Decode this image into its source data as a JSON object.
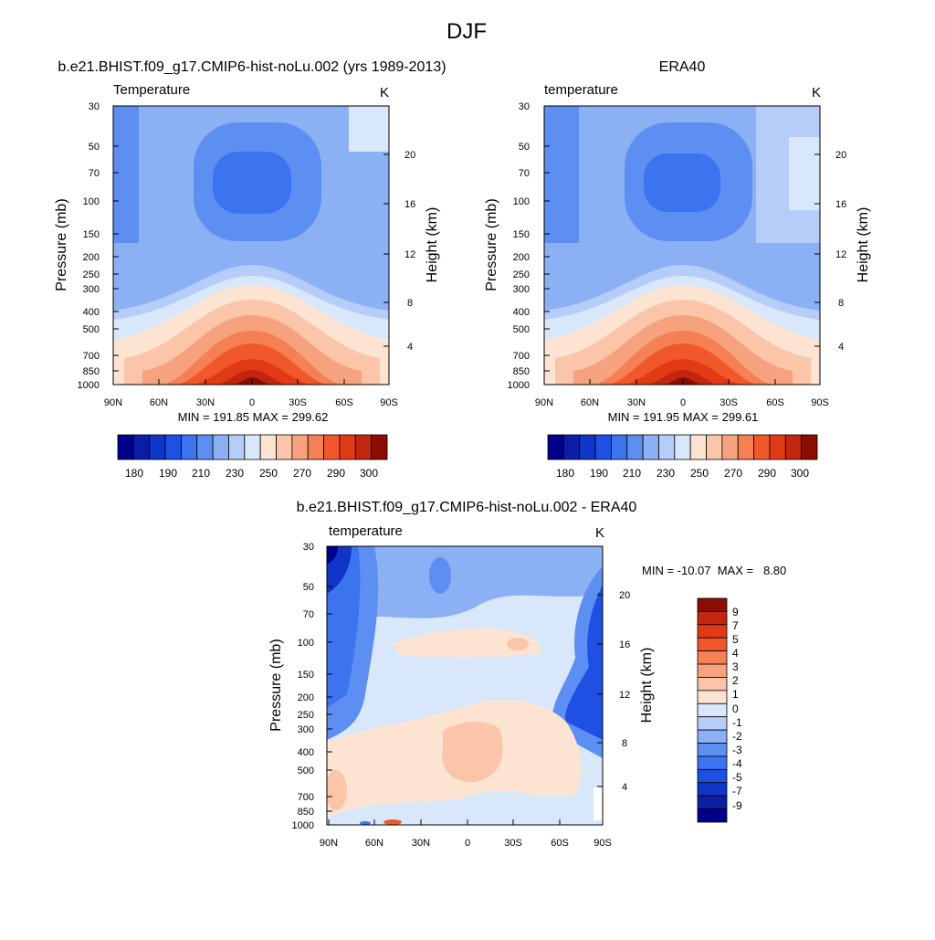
{
  "page": {
    "title": "DJF"
  },
  "colors": {
    "temp_levels": [
      "#00008a",
      "#0d1ea6",
      "#0f36c8",
      "#1f50e4",
      "#3c74f0",
      "#5d8ef2",
      "#8cb0f4",
      "#b5cdf8",
      "#d9e7fb",
      "#fde4d2",
      "#fbc5aa",
      "#f7a27e",
      "#f48054",
      "#f0582b",
      "#e33a16",
      "#c1260e",
      "#8b0d04"
    ],
    "diff_levels": [
      "#00008a",
      "#0d1ea6",
      "#0f36c8",
      "#1f50e4",
      "#3c74f0",
      "#5d8ef2",
      "#8cb0f4",
      "#b5cdf8",
      "#d9e7fb",
      "#fde4d2",
      "#fbc5aa",
      "#f7a27e",
      "#f48054",
      "#f0582b",
      "#e33a16",
      "#c1260e",
      "#8b0d04"
    ]
  },
  "chart_data": [
    {
      "type": "heatmap",
      "id": "model",
      "title": "b.e21.BHIST.f09_g17.CMIP6-hist-noLu.002 (yrs 1989-2013)",
      "subtitle_left": "Temperature",
      "subtitle_right": "K",
      "xlabel": "",
      "ylabel": "Pressure (mb)",
      "ylabel_right": "Height (km)",
      "x_ticks": [
        "90N",
        "60N",
        "30N",
        "0",
        "30S",
        "60S",
        "90S"
      ],
      "y_ticks": [
        "30",
        "50",
        "70",
        "100",
        "150",
        "200",
        "250",
        "300",
        "400",
        "500",
        "700",
        "850",
        "1000"
      ],
      "y_right_ticks": [
        "20",
        "16",
        "12",
        "8",
        "4"
      ],
      "stats": "MIN = 191.85  MAX = 299.62",
      "min": 191.85,
      "max": 299.62,
      "colorbar_ticks": [
        "180",
        "190",
        "210",
        "230",
        "250",
        "270",
        "290",
        "300"
      ]
    },
    {
      "type": "heatmap",
      "id": "era40",
      "title": "ERA40",
      "subtitle_left": "temperature",
      "subtitle_right": "K",
      "xlabel": "",
      "ylabel": "Pressure (mb)",
      "ylabel_right": "Height (km)",
      "x_ticks": [
        "90N",
        "60N",
        "30N",
        "0",
        "30S",
        "60S",
        "90S"
      ],
      "y_ticks": [
        "30",
        "50",
        "70",
        "100",
        "150",
        "200",
        "250",
        "300",
        "400",
        "500",
        "700",
        "850",
        "1000"
      ],
      "y_right_ticks": [
        "20",
        "16",
        "12",
        "8",
        "4"
      ],
      "stats": "MIN = 191.95  MAX = 299.61",
      "min": 191.95,
      "max": 299.61,
      "colorbar_ticks": [
        "180",
        "190",
        "210",
        "230",
        "250",
        "270",
        "290",
        "300"
      ]
    },
    {
      "type": "heatmap",
      "id": "diff",
      "title": "b.e21.BHIST.f09_g17.CMIP6-hist-noLu.002 - ERA40",
      "subtitle_left": "temperature",
      "subtitle_right": "K",
      "xlabel": "",
      "ylabel": "Pressure (mb)",
      "ylabel_right": "Height (km)",
      "x_ticks": [
        "90N",
        "60N",
        "30N",
        "0",
        "30S",
        "60S",
        "90S"
      ],
      "y_ticks": [
        "30",
        "50",
        "70",
        "100",
        "150",
        "200",
        "250",
        "300",
        "400",
        "500",
        "700",
        "850",
        "1000"
      ],
      "y_right_ticks": [
        "20",
        "16",
        "12",
        "8",
        "4"
      ],
      "stats": "MIN = -10.07  MAX =   8.80",
      "min": -10.07,
      "max": 8.8,
      "colorbar_ticks": [
        "9",
        "7",
        "5",
        "4",
        "3",
        "2",
        "1",
        "0",
        "-1",
        "-2",
        "-3",
        "-4",
        "-5",
        "-7",
        "-9"
      ]
    }
  ]
}
